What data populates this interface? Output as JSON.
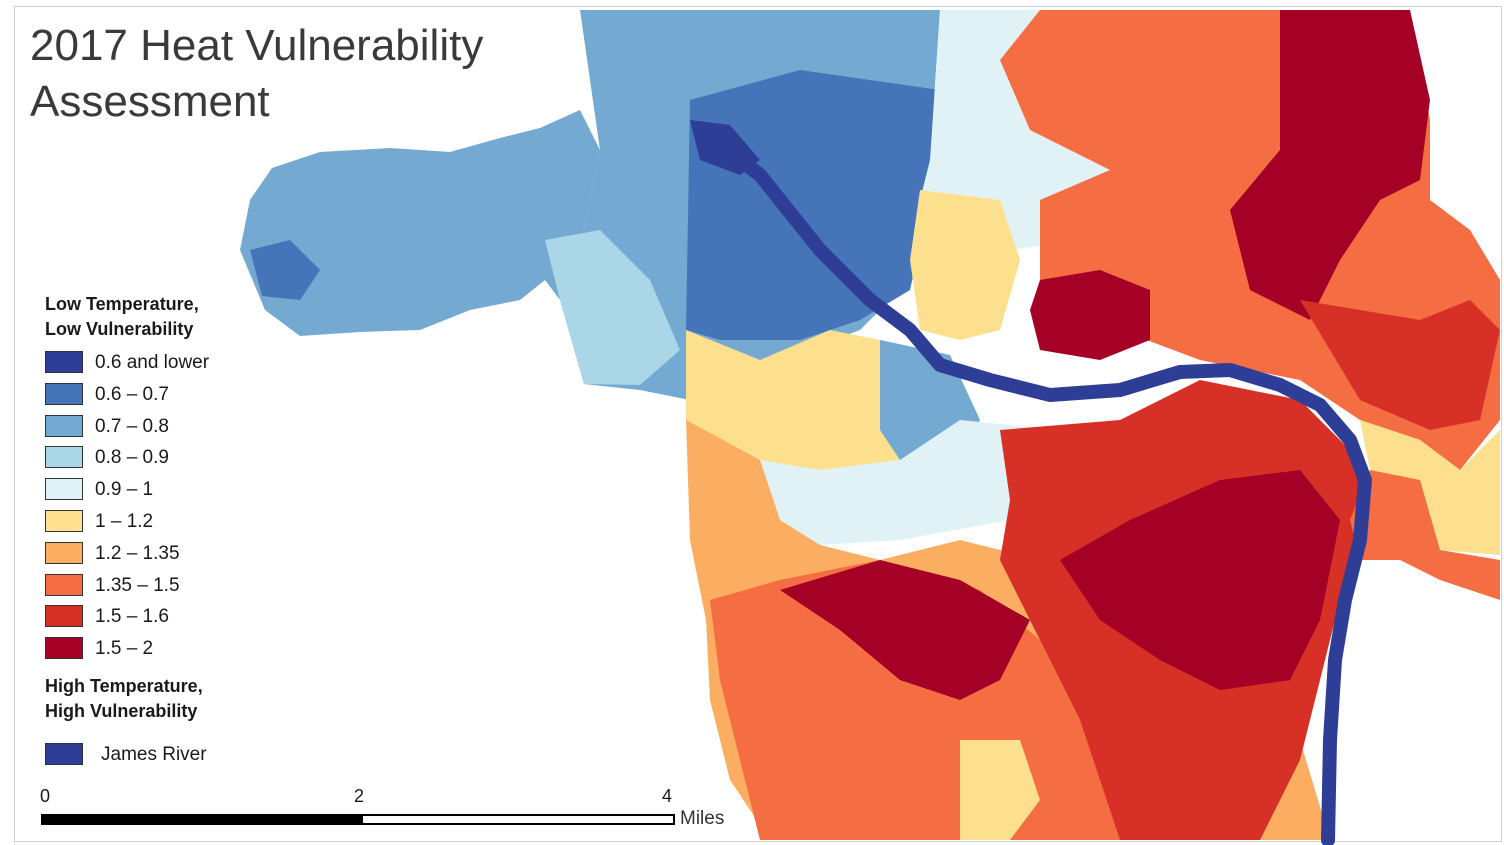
{
  "title": {
    "line1": "2017 Heat Vulnerability",
    "line2": "Assessment"
  },
  "legend": {
    "low_heading_line1": "Low Temperature,",
    "low_heading_line2": "Low Vulnerability",
    "high_heading_line1": "High Temperature,",
    "high_heading_line2": "High Vulnerability",
    "classes": [
      {
        "label": "0.6 and lower",
        "color": "#2e3d96"
      },
      {
        "label": "0.6 – 0.7",
        "color": "#4674b8"
      },
      {
        "label": "0.7 – 0.8",
        "color": "#74a9d2"
      },
      {
        "label": "0.8 – 0.9",
        "color": "#abd6e8"
      },
      {
        "label": "0.9 – 1",
        "color": "#e1f2f7"
      },
      {
        "label": "1 – 1.2",
        "color": "#fde08e"
      },
      {
        "label": "1.2 – 1.35",
        "color": "#fbae61"
      },
      {
        "label": "1.35 – 1.5",
        "color": "#f46d43"
      },
      {
        "label": "1.5 – 1.6",
        "color": "#d73027"
      },
      {
        "label": "1.5 – 2",
        "color": "#a50026"
      }
    ],
    "river": {
      "label": "James River",
      "color": "#2e3d96"
    }
  },
  "scale_bar": {
    "ticks": [
      "0",
      "2",
      "4"
    ],
    "unit": "Miles"
  }
}
